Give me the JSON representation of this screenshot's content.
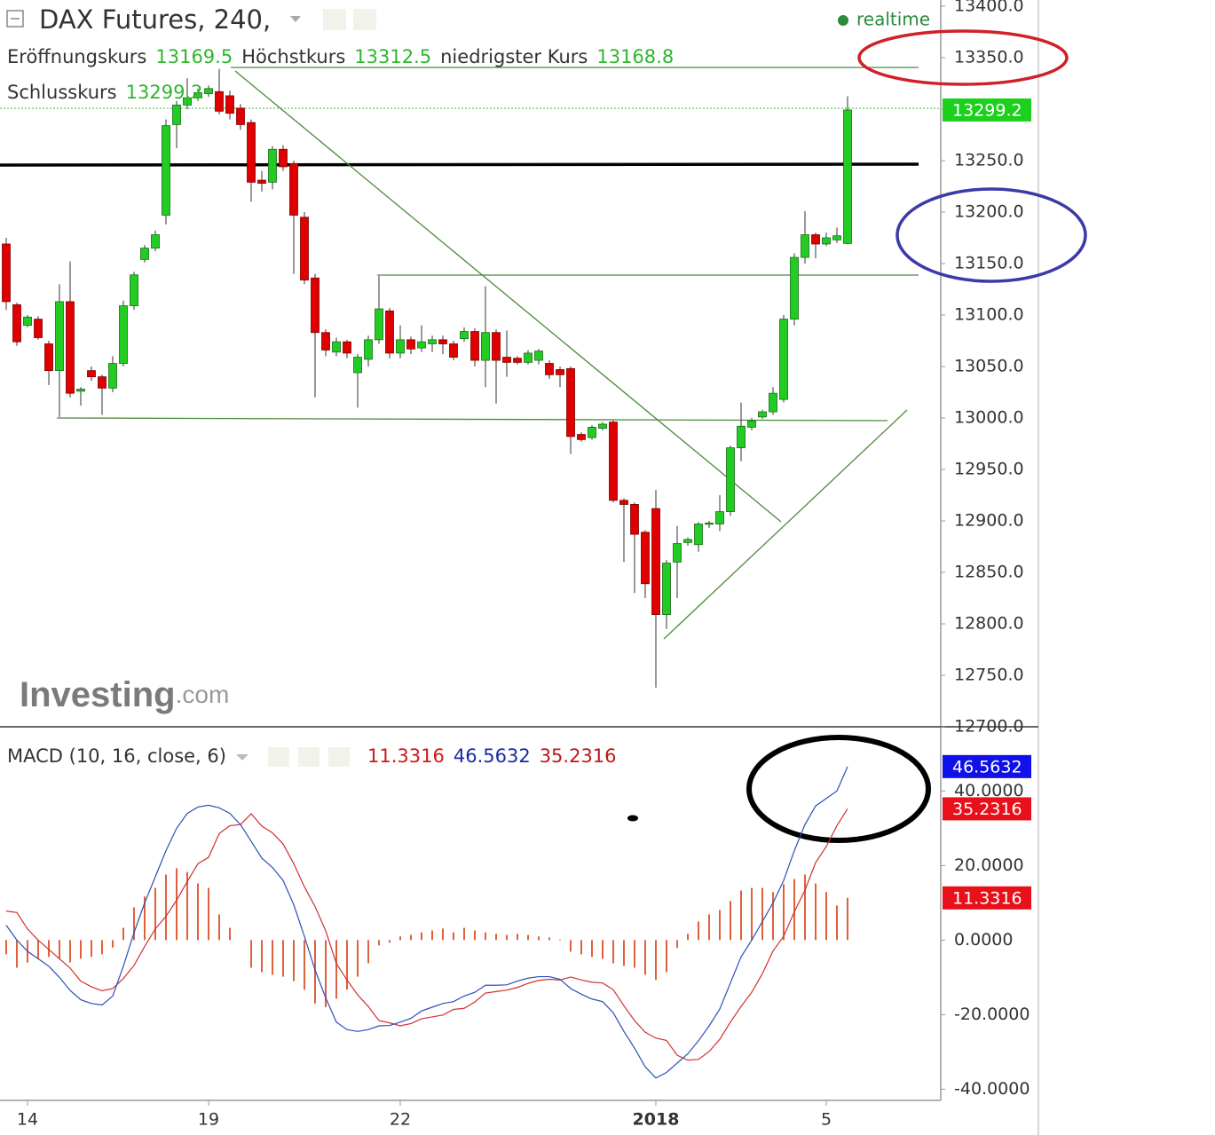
{
  "header": {
    "title": "DAX Futures, 240,",
    "status": "realtime"
  },
  "chart_data": [
    {
      "type": "candlestick",
      "open_label": "Eröffnungskurs",
      "high_label": "Höchstkurs",
      "low_label": "niedrigster Kurs",
      "close_label": "Schlusskurs",
      "watermark": {
        "brand": "Investing",
        "suffix": ".com"
      },
      "up_color": "#22cc22",
      "down_color": "#e00000",
      "categories": [
        null,
        null,
        "14",
        null,
        null,
        null,
        null,
        null,
        null,
        null,
        null,
        null,
        null,
        null,
        null,
        null,
        null,
        null,
        null,
        "19",
        null,
        null,
        null,
        null,
        null,
        null,
        null,
        null,
        null,
        null,
        null,
        null,
        null,
        null,
        null,
        null,
        null,
        "22",
        null,
        null,
        null,
        null,
        null,
        null,
        null,
        null,
        null,
        null,
        null,
        null,
        null,
        null,
        null,
        null,
        null,
        null,
        null,
        null,
        null,
        null,
        null,
        "2018",
        null,
        null,
        null,
        null,
        null,
        null,
        null,
        null,
        null,
        null,
        null,
        null,
        null,
        null,
        null,
        "5",
        null,
        null
      ],
      "open": [
        13169,
        13110,
        13090,
        13096,
        13072,
        13046,
        13113,
        13026,
        13046,
        13040,
        13029,
        13053,
        13109,
        13154,
        13165,
        13197,
        13285,
        13304,
        13311,
        13315,
        13317,
        13313,
        13301,
        13287,
        13231,
        13229,
        13261,
        13247,
        13195,
        13136,
        13083,
        13064,
        13074,
        13044,
        13057,
        13076,
        13104,
        13063,
        13076,
        13068,
        13072,
        13076,
        13072,
        13077,
        13084,
        13056,
        13083,
        13059,
        13058,
        13054,
        13056,
        13053,
        13047,
        13048,
        12984,
        12981,
        12990,
        12996,
        12920,
        12916,
        12889,
        12912,
        12809,
        12860,
        12879,
        12877,
        12897,
        12897,
        12909,
        12971,
        12991,
        13001,
        13006,
        13018,
        13096,
        13156,
        13178,
        13169,
        13173,
        13169.5
      ],
      "high": [
        13175,
        13112,
        13100,
        13099,
        13075,
        13130,
        13152,
        13030,
        13050,
        13042,
        13060,
        13114,
        13142,
        13168,
        13182,
        13290,
        13308,
        13330,
        13320,
        13323,
        13339,
        13318,
        13305,
        13290,
        13240,
        13264,
        13265,
        13250,
        13200,
        13140,
        13086,
        13078,
        13076,
        13062,
        13080,
        13138,
        13107,
        13090,
        13079,
        13090,
        13080,
        13080,
        13075,
        13088,
        13087,
        13128,
        13086,
        13085,
        13060,
        13066,
        13067,
        13056,
        13050,
        13050,
        12986,
        12993,
        12996,
        12998,
        12922,
        12918,
        12891,
        12930,
        12862,
        12895,
        12884,
        12899,
        12900,
        12925,
        12973,
        13015,
        13000,
        13008,
        13030,
        13100,
        13160,
        13201,
        13180,
        13180,
        13185,
        13312.5
      ],
      "low": [
        13105,
        13070,
        13088,
        13076,
        13032,
        13001,
        13020,
        13012,
        13036,
        13003,
        13025,
        13050,
        13105,
        13151,
        13162,
        13188,
        13262,
        13300,
        13308,
        13312,
        13295,
        13290,
        13280,
        13210,
        13220,
        13222,
        13240,
        13140,
        13130,
        13020,
        13060,
        13060,
        13058,
        13010,
        13050,
        13072,
        13058,
        13058,
        13062,
        13064,
        13064,
        13062,
        13056,
        13074,
        13050,
        13030,
        13014,
        13040,
        13052,
        13052,
        13052,
        13038,
        13030,
        12965,
        12977,
        12979,
        12988,
        12918,
        12860,
        12830,
        12825,
        12738,
        12795,
        12825,
        12876,
        12870,
        12893,
        12890,
        12905,
        12958,
        12988,
        12999,
        13003,
        13015,
        13090,
        13150,
        13155,
        13167,
        13170,
        13168.8
      ],
      "close": [
        13113,
        13074,
        13098,
        13078,
        13046,
        13113,
        13024,
        13028,
        13040,
        13029,
        13053,
        13109,
        13139,
        13165,
        13178,
        13284,
        13304,
        13311,
        13316,
        13320,
        13298,
        13296,
        13285,
        13229,
        13228,
        13261,
        13244,
        13197,
        13134,
        13083,
        13066,
        13074,
        13063,
        13059,
        13076,
        13106,
        13063,
        13076,
        13067,
        13074,
        13076,
        13072,
        13059,
        13084,
        13056,
        13083,
        13056,
        13054,
        13054,
        13063,
        13065,
        13042,
        13042,
        12982,
        12979,
        12991,
        12994,
        12920,
        12916,
        12887,
        12839,
        12809,
        12859,
        12878,
        12882,
        12897,
        12898,
        12909,
        12971,
        12992,
        12997,
        13006,
        13024,
        13096,
        13156,
        13178,
        13169,
        13175,
        13177,
        13299.2
      ],
      "ylim": [
        12700,
        13400
      ],
      "yticks": [
        {
          "value": 12700,
          "label": "12700.0"
        },
        {
          "value": 12750,
          "label": "12750.0"
        },
        {
          "value": 12800,
          "label": "12800.0"
        },
        {
          "value": 12850,
          "label": "12850.0"
        },
        {
          "value": 12900,
          "label": "12900.0"
        },
        {
          "value": 12950,
          "label": "12950.0"
        },
        {
          "value": 13000,
          "label": "13000.0"
        },
        {
          "value": 13050,
          "label": "13050.0"
        },
        {
          "value": 13100,
          "label": "13100.0"
        },
        {
          "value": 13150,
          "label": "13150.0"
        },
        {
          "value": 13200,
          "label": "13200.0"
        },
        {
          "value": 13250,
          "label": "13250.0"
        },
        {
          "value": 13300,
          "label": "13300.0"
        },
        {
          "value": 13350,
          "label": "13350.0"
        },
        {
          "value": 13400,
          "label": "13400.0"
        }
      ]
    },
    {
      "type": "macd",
      "title": "MACD (10, 16, close, 6)",
      "histogram": {
        "color": "#e0603c",
        "values": [
          -3.8,
          -7.4,
          -6,
          -5,
          -4.5,
          -5,
          -6,
          -5,
          -4.5,
          -3.8,
          -2,
          3.3,
          8.8,
          11.7,
          14,
          17.6,
          19.3,
          18.3,
          15.2,
          14,
          6.9,
          3.3,
          0,
          -7.4,
          -8.6,
          -9.3,
          -9.8,
          -11,
          -13.3,
          -17,
          -18,
          -15.7,
          -13.3,
          -9.8,
          -6.2,
          -1.4,
          -0.7,
          1,
          1.4,
          2.1,
          2.6,
          3.1,
          2.1,
          3.3,
          2.6,
          2.1,
          1.7,
          1.4,
          1.7,
          1.4,
          1,
          0.7,
          0.2,
          -3.1,
          -3.8,
          -4.5,
          -5,
          -6.2,
          -6.9,
          -7.4,
          -9.3,
          -10.7,
          -8.6,
          -2.1,
          1.7,
          5,
          6.9,
          8.1,
          10.5,
          13.3,
          14,
          14,
          12.9,
          15,
          16.4,
          17.6,
          15.2,
          12.9,
          9.3,
          11.3316
        ]
      },
      "macd": {
        "color": "#2b4fb8",
        "values": [
          4,
          0,
          -3,
          -5,
          -7,
          -10,
          -13.5,
          -16,
          -17,
          -17.4,
          -15,
          -7,
          2,
          10,
          17,
          24,
          30,
          34,
          35.7,
          36.2,
          35.5,
          34,
          31,
          26.5,
          22,
          19.5,
          16,
          9.5,
          1,
          -8,
          -15.5,
          -22,
          -24,
          -24.5,
          -24,
          -23,
          -22.9,
          -22,
          -21,
          -19,
          -18,
          -17,
          -16.5,
          -15,
          -14,
          -12.1,
          -12.1,
          -12,
          -11,
          -10.2,
          -9.8,
          -9.8,
          -10.5,
          -13,
          -14.5,
          -15.8,
          -16.5,
          -19.5,
          -24.5,
          -29,
          -34,
          -37,
          -35.5,
          -33,
          -30.5,
          -27,
          -23,
          -18.5,
          -11.5,
          -4.5,
          0,
          5,
          10,
          16,
          24,
          31,
          36,
          38,
          40,
          46.5632
        ]
      },
      "signal": {
        "color": "#d03030",
        "values": [
          7.8,
          7.4,
          3,
          0,
          -2.5,
          -5,
          -7.5,
          -11,
          -12.5,
          -13.6,
          -13,
          -10.3,
          -6.8,
          -1.7,
          3,
          6.4,
          10.7,
          15.7,
          20.5,
          22.2,
          28.6,
          30.7,
          31,
          33.9,
          30.6,
          28.8,
          25.8,
          20.5,
          14.3,
          9,
          2.5,
          -6.3,
          -10.7,
          -14.7,
          -17.8,
          -21.6,
          -22.2,
          -23,
          -22.4,
          -21.1,
          -20.6,
          -20.1,
          -18.6,
          -18.3,
          -16.6,
          -14.2,
          -13.8,
          -13.4,
          -12.7,
          -11.6,
          -10.8,
          -10.5,
          -10.7,
          -9.9,
          -10.7,
          -11.3,
          -11.5,
          -13.3,
          -17.6,
          -21.6,
          -24.7,
          -26.3,
          -26.9,
          -30.9,
          -32.2,
          -32,
          -29.9,
          -26.6,
          -22,
          -17.8,
          -14,
          -9,
          -2.9,
          1,
          7.6,
          13.4,
          20.8,
          25.1,
          30.7,
          35.2316
        ]
      },
      "ylim": [
        -43,
        57
      ],
      "yticks": [
        {
          "value": -40,
          "label": "-40.0000"
        },
        {
          "value": -20,
          "label": "-20.0000"
        },
        {
          "value": 0,
          "label": "0.0000"
        },
        {
          "value": 20,
          "label": "20.0000"
        },
        {
          "value": 40,
          "label": "40.0000"
        }
      ]
    }
  ]
}
